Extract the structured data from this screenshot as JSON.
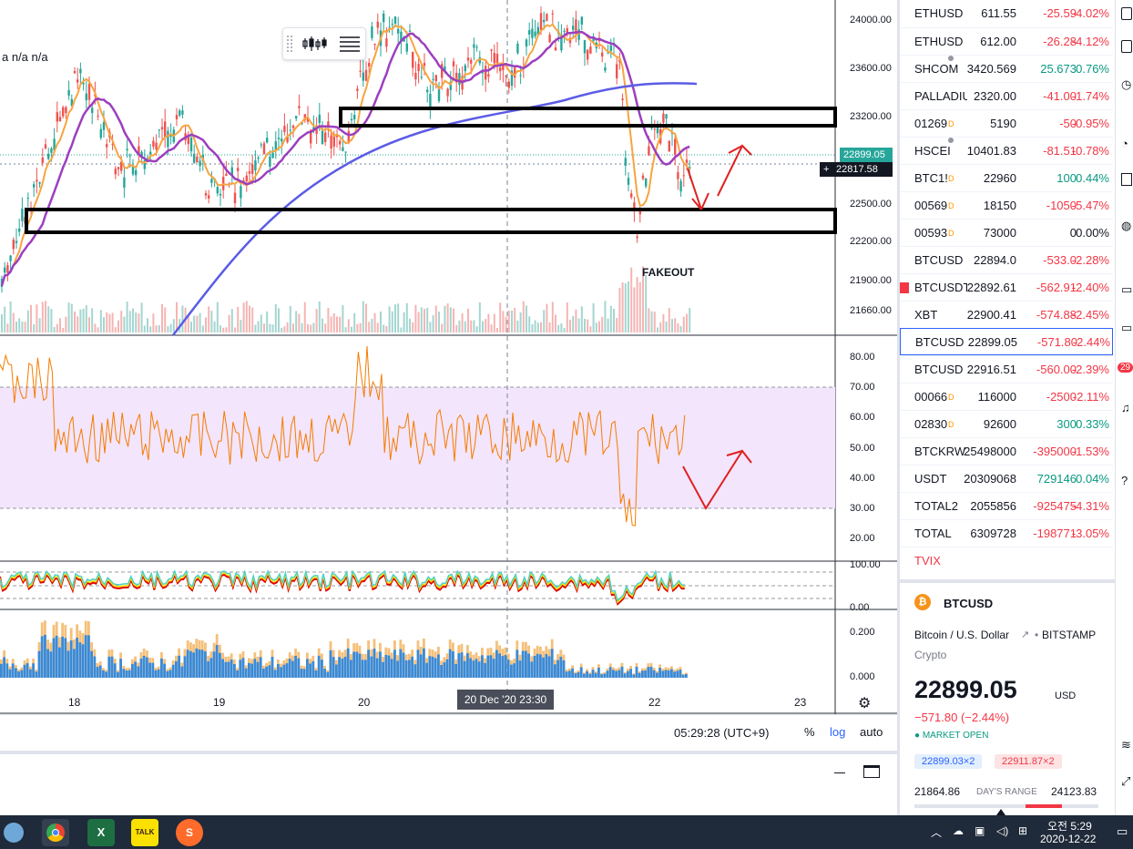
{
  "chart": {
    "ohlc_text": "a n/a n/a",
    "annotation": "FAKEOUT",
    "price_axis": [
      "24000.00",
      "23600.00",
      "23200.00",
      "22500.00",
      "22200.00",
      "21900.00",
      "21660.00"
    ],
    "price_tag_last": "22899.05",
    "price_tag_sub": "00:32",
    "price_tag_cross": "22817.58",
    "rsi_axis": [
      "80.00",
      "70.00",
      "60.00",
      "50.00",
      "40.00",
      "30.00",
      "20.00"
    ],
    "osc_axis": [
      "100.00",
      "0.00"
    ],
    "vol_axis": [
      "0.200",
      "0.000"
    ],
    "time_axis": [
      "18",
      "19",
      "20",
      "22",
      "23"
    ],
    "crosshair_date": "20 Dec '20   23:30",
    "clock": "05:29:28 (UTC+9)",
    "btn_percent": "%",
    "btn_log": "log",
    "btn_auto": "auto",
    "colors": {
      "up": "#26a69a",
      "down": "#ef5350",
      "ma_orange": "#f7a440",
      "ma_purple": "#9c3fbf",
      "ma_blue": "#5b5ce6",
      "rsi_band": "#f3e5fc",
      "annotation_red": "#e02020"
    }
  },
  "watchlist": [
    {
      "symbol": "ETHUSD",
      "last": "611.55",
      "chg": "-25.59",
      "pct": "-4.02%",
      "dir": "neg",
      "mark": ""
    },
    {
      "symbol": "ETHUSD",
      "last": "612.00",
      "chg": "-26.28",
      "pct": "-4.12%",
      "dir": "neg",
      "mark": ""
    },
    {
      "symbol": "SHCOM",
      "last": "3420.569",
      "chg": "25.673",
      "pct": "0.76%",
      "dir": "pos",
      "mark": "dot"
    },
    {
      "symbol": "PALLADIU",
      "last": "2320.00",
      "chg": "-41.00",
      "pct": "-1.74%",
      "dir": "neg",
      "mark": ""
    },
    {
      "symbol": "01269",
      "last": "5190",
      "chg": "-50",
      "pct": "-0.95%",
      "dir": "neg",
      "mark": "D"
    },
    {
      "symbol": "HSCEI",
      "last": "10401.83",
      "chg": "-81.51",
      "pct": "-0.78%",
      "dir": "neg",
      "mark": "dot"
    },
    {
      "symbol": "BTC1!",
      "last": "22960",
      "chg": "100",
      "pct": "0.44%",
      "dir": "pos",
      "mark": "D"
    },
    {
      "symbol": "00569",
      "last": "18150",
      "chg": "-1050",
      "pct": "-5.47%",
      "dir": "neg",
      "mark": "D"
    },
    {
      "symbol": "00593",
      "last": "73000",
      "chg": "0",
      "pct": "0.00%",
      "dir": "neu",
      "mark": "D"
    },
    {
      "symbol": "BTCUSD",
      "last": "22894.0",
      "chg": "-533.0",
      "pct": "-2.28%",
      "dir": "neg",
      "mark": ""
    },
    {
      "symbol": "BTCUSDT",
      "last": "22892.61",
      "chg": "-562.91",
      "pct": "-2.40%",
      "dir": "neg",
      "mark": ""
    },
    {
      "symbol": "XBT",
      "last": "22900.41",
      "chg": "-574.88",
      "pct": "-2.45%",
      "dir": "neg",
      "mark": ""
    },
    {
      "symbol": "BTCUSD",
      "last": "22899.05",
      "chg": "-571.80",
      "pct": "-2.44%",
      "dir": "neg",
      "mark": ""
    },
    {
      "symbol": "BTCUSD",
      "last": "22916.51",
      "chg": "-560.00",
      "pct": "-2.39%",
      "dir": "neg",
      "mark": ""
    },
    {
      "symbol": "00066",
      "last": "116000",
      "chg": "-2500",
      "pct": "-2.11%",
      "dir": "neg",
      "mark": "D"
    },
    {
      "symbol": "02830",
      "last": "92600",
      "chg": "300",
      "pct": "0.33%",
      "dir": "pos",
      "mark": "D"
    },
    {
      "symbol": "BTCKRW",
      "last": "25498000",
      "chg": "-395000",
      "pct": "-1.53%",
      "dir": "neg",
      "mark": ""
    },
    {
      "symbol": "USDT",
      "last": "20309068",
      "chg": "729146",
      "pct": "0.04%",
      "dir": "pos",
      "mark": ""
    },
    {
      "symbol": "TOTAL2",
      "last": "2055856",
      "chg": "-925475",
      "pct": "-4.31%",
      "dir": "neg",
      "mark": ""
    },
    {
      "symbol": "TOTAL",
      "last": "6309728",
      "chg": "-198771",
      "pct": "-3.05%",
      "dir": "neg",
      "mark": ""
    },
    {
      "symbol": "TVIX",
      "last": "",
      "chg": "",
      "pct": "",
      "dir": "neg",
      "mark": ""
    }
  ],
  "detail": {
    "symbol": "BTCUSD",
    "name": "Bitcoin / U.S. Dollar",
    "exchange": "BITSTAMP",
    "type": "Crypto",
    "price": "22899.05",
    "currency": "USD",
    "change": "−571.80 (−2.44%)",
    "status": "MARKET OPEN",
    "bid": "22899.03×2",
    "ask": "22911.87×2",
    "range_low": "21864.86",
    "range_label": "DAY'S RANGE",
    "range_high": "24123.83"
  },
  "taskbar": {
    "time": "오전 5:29",
    "date": "2020-12-22",
    "badge": "29",
    "apps": [
      "chrome-icon",
      "excel-icon",
      "kakaotalk-icon",
      "s-app-icon"
    ]
  }
}
